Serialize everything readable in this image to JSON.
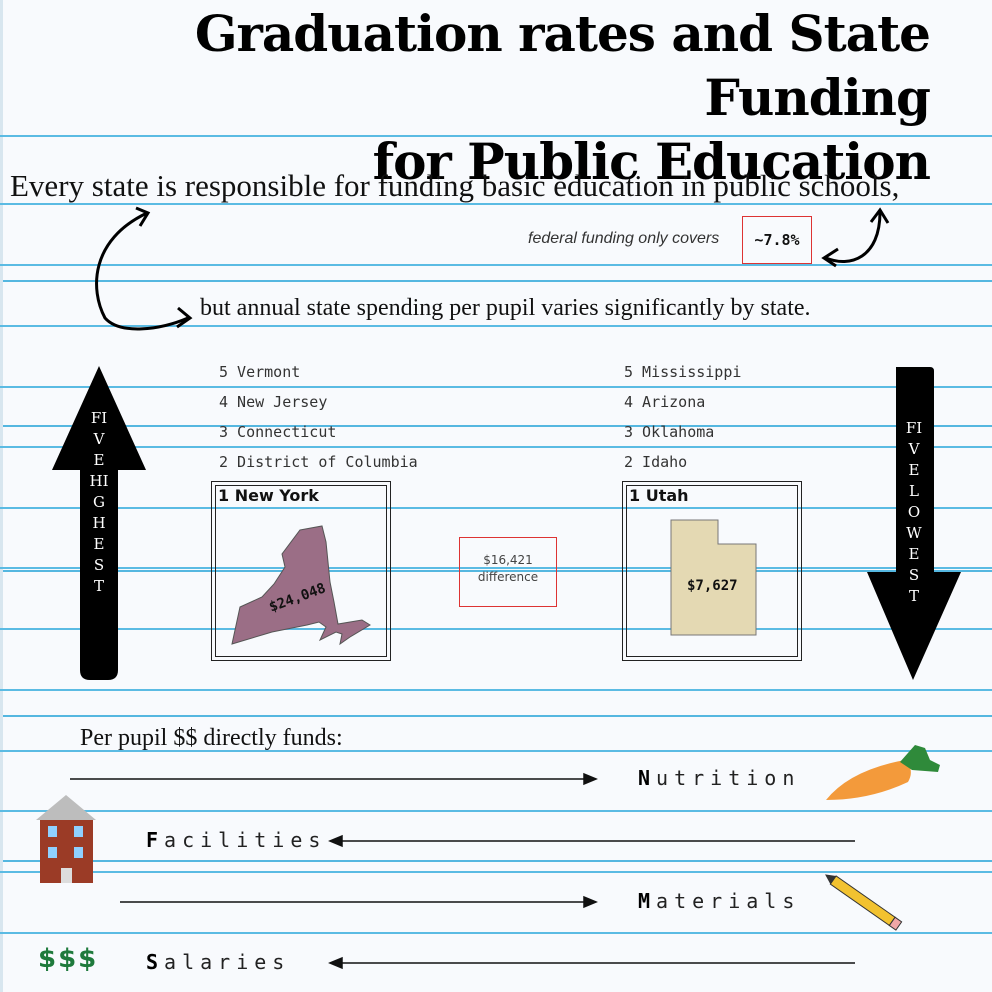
{
  "title": {
    "line1": "Graduation rates and State Funding",
    "line2": "for Public Education"
  },
  "intro": {
    "line1": "Every state is responsible for funding basic education in public schools,",
    "line2": "but annual state spending per pupil varies significantly by state.",
    "federal_note": "federal funding only covers",
    "federal_value": "~7.8%"
  },
  "highest": {
    "label": "FIVE HIGHEST",
    "ranks": [
      "5 Vermont",
      "4 New Jersey",
      "3 Connecticut",
      "2 District of Columbia"
    ],
    "top": "1  New York",
    "top_value": "$24,048",
    "top_color": "#9b6e86"
  },
  "lowest": {
    "label": "FIVE LOWEST",
    "ranks": [
      "5 Mississippi",
      "4 Arizona",
      "3 Oklahoma",
      "2 Idaho"
    ],
    "top": "1  Utah",
    "top_value": "$7,627",
    "top_color": "#e4d9b3"
  },
  "difference": {
    "value": "$16,421",
    "label": "difference"
  },
  "funds": {
    "title": "Per pupil $$ directly funds:",
    "items": [
      {
        "initial": "N",
        "rest": "utrition",
        "icon": "carrot-icon"
      },
      {
        "initial": "F",
        "rest": "acilities",
        "icon": "school-building-icon"
      },
      {
        "initial": "M",
        "rest": "aterials",
        "icon": "pencil-icon"
      },
      {
        "initial": "S",
        "rest": "alaries",
        "icon": "dollar-signs-icon"
      }
    ],
    "dollar_symbol": "$$$"
  },
  "colors": {
    "rule_line": "#5bbbe3",
    "accent_red": "#d33333",
    "carrot": "#f39a3b",
    "carrot_leaves": "#2f8a3a",
    "building": "#9b3b26",
    "dollar_green": "#1f7a3c",
    "pencil": "#f2c230"
  }
}
